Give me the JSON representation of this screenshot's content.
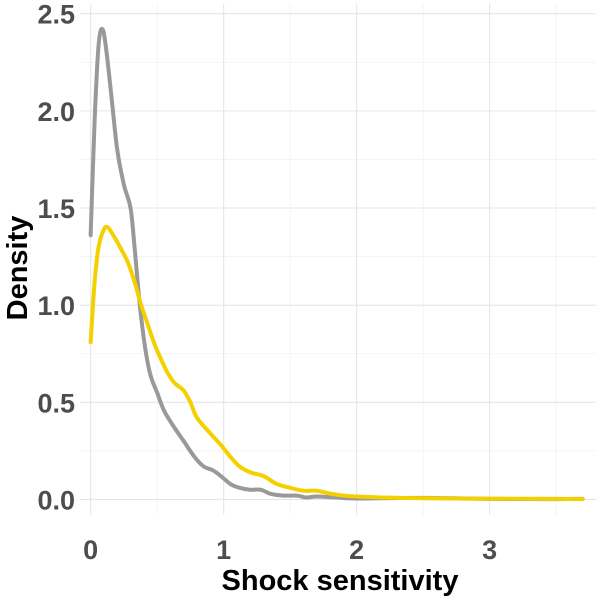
{
  "chart_data": {
    "type": "line",
    "title": "",
    "xlabel": "Shock sensitivity",
    "ylabel": "Density",
    "xlim": [
      -0.08,
      3.8
    ],
    "ylim": [
      -0.08,
      2.55
    ],
    "x_ticks": [
      0,
      1,
      2,
      3
    ],
    "x_tick_labels": [
      "0",
      "1",
      "2",
      "3"
    ],
    "y_ticks": [
      0.0,
      0.5,
      1.0,
      1.5,
      2.0,
      2.5
    ],
    "y_tick_labels": [
      "0.0",
      "0.5",
      "1.0",
      "1.5",
      "2.0",
      "2.5"
    ],
    "grid": true,
    "legend": "none",
    "series": [
      {
        "color": "#999999",
        "points": [
          [
            0,
            1.36
          ],
          [
            0.03,
            1.95
          ],
          [
            0.06,
            2.34
          ],
          [
            0.09,
            2.42
          ],
          [
            0.12,
            2.3
          ],
          [
            0.16,
            2.05
          ],
          [
            0.2,
            1.8
          ],
          [
            0.25,
            1.62
          ],
          [
            0.3,
            1.5
          ],
          [
            0.33,
            1.3
          ],
          [
            0.37,
            1.0
          ],
          [
            0.41,
            0.78
          ],
          [
            0.45,
            0.64
          ],
          [
            0.5,
            0.55
          ],
          [
            0.55,
            0.46
          ],
          [
            0.62,
            0.38
          ],
          [
            0.7,
            0.3
          ],
          [
            0.78,
            0.22
          ],
          [
            0.85,
            0.17
          ],
          [
            0.92,
            0.15
          ],
          [
            0.98,
            0.12
          ],
          [
            1.05,
            0.08
          ],
          [
            1.12,
            0.06
          ],
          [
            1.2,
            0.05
          ],
          [
            1.28,
            0.05
          ],
          [
            1.35,
            0.03
          ],
          [
            1.45,
            0.02
          ],
          [
            1.55,
            0.02
          ],
          [
            1.62,
            0.01
          ],
          [
            1.7,
            0.015
          ],
          [
            1.85,
            0.01
          ],
          [
            2.0,
            0.005
          ],
          [
            2.5,
            0.008
          ],
          [
            3.0,
            0.003
          ],
          [
            3.5,
            0.002
          ],
          [
            3.7,
            0.003
          ]
        ]
      },
      {
        "color": "#f5d000",
        "points": [
          [
            0,
            0.81
          ],
          [
            0.03,
            1.12
          ],
          [
            0.06,
            1.3
          ],
          [
            0.1,
            1.39
          ],
          [
            0.13,
            1.4
          ],
          [
            0.17,
            1.36
          ],
          [
            0.22,
            1.3
          ],
          [
            0.28,
            1.22
          ],
          [
            0.33,
            1.12
          ],
          [
            0.38,
            1.0
          ],
          [
            0.43,
            0.9
          ],
          [
            0.48,
            0.8
          ],
          [
            0.53,
            0.72
          ],
          [
            0.58,
            0.65
          ],
          [
            0.63,
            0.6
          ],
          [
            0.7,
            0.56
          ],
          [
            0.75,
            0.5
          ],
          [
            0.8,
            0.42
          ],
          [
            0.9,
            0.34
          ],
          [
            0.98,
            0.28
          ],
          [
            1.05,
            0.22
          ],
          [
            1.12,
            0.17
          ],
          [
            1.2,
            0.14
          ],
          [
            1.3,
            0.12
          ],
          [
            1.4,
            0.08
          ],
          [
            1.5,
            0.06
          ],
          [
            1.6,
            0.045
          ],
          [
            1.7,
            0.045
          ],
          [
            1.8,
            0.03
          ],
          [
            1.9,
            0.02
          ],
          [
            2.0,
            0.015
          ],
          [
            2.2,
            0.01
          ],
          [
            2.5,
            0.006
          ],
          [
            3.0,
            0.004
          ],
          [
            3.5,
            0.003
          ],
          [
            3.7,
            0.002
          ]
        ]
      }
    ]
  }
}
